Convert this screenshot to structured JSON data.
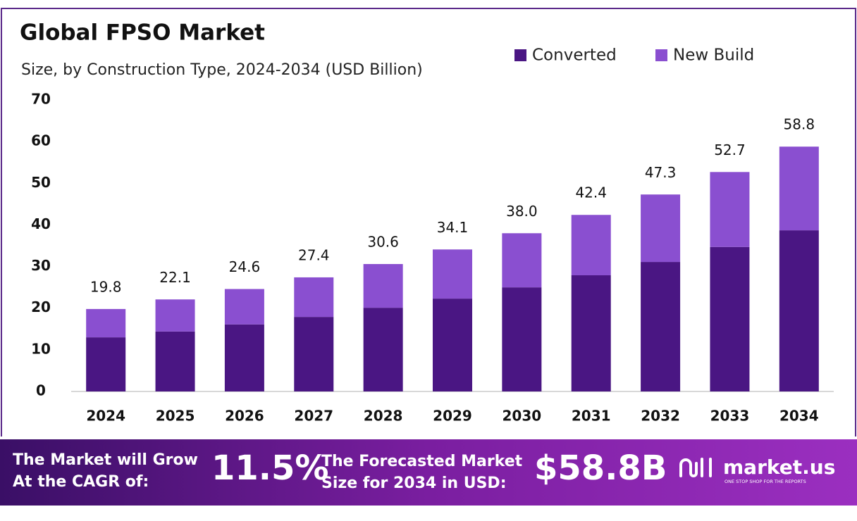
{
  "chart_data": {
    "type": "stacked-bar",
    "title": "Global FPSO Market",
    "subtitle": "Size, by Construction Type, 2024-2034 (USD Billion)",
    "categories": [
      "2024",
      "2025",
      "2026",
      "2027",
      "2028",
      "2029",
      "2030",
      "2031",
      "2032",
      "2033",
      "2034"
    ],
    "series": [
      {
        "name": "Converted",
        "color": "#4a1683",
        "values": [
          13.0,
          14.4,
          16.1,
          17.9,
          20.1,
          22.3,
          25.0,
          27.9,
          31.1,
          34.7,
          38.7
        ]
      },
      {
        "name": "New Build",
        "color": "#8a4fd0",
        "values": [
          6.8,
          7.7,
          8.5,
          9.5,
          10.5,
          11.8,
          13.0,
          14.5,
          16.2,
          18.0,
          20.1
        ]
      }
    ],
    "totals": {
      "values": [
        19.8,
        22.1,
        24.6,
        27.4,
        30.6,
        34.1,
        38.0,
        42.4,
        47.3,
        52.7,
        58.8
      ],
      "value_labels": [
        "19.8",
        "22.1",
        "24.6",
        "27.4",
        "30.6",
        "34.1",
        "38.0",
        "42.4",
        "47.3",
        "52.7",
        "58.8"
      ]
    },
    "ylim": [
      0,
      70
    ],
    "yticks": [
      0,
      10,
      20,
      30,
      40,
      50,
      60,
      70
    ],
    "grid": false,
    "legend": "top-right"
  },
  "footer": {
    "cagr_text": [
      "The Market will Grow",
      "At the CAGR of:"
    ],
    "cagr": "11.5%",
    "forecast_text": [
      "The Forecasted Market",
      "Size for 2034 in USD:"
    ],
    "forecast": "$58.8B",
    "brand": "market.us",
    "tagline": "ONE STOP SHOP FOR THE REPORTS"
  }
}
